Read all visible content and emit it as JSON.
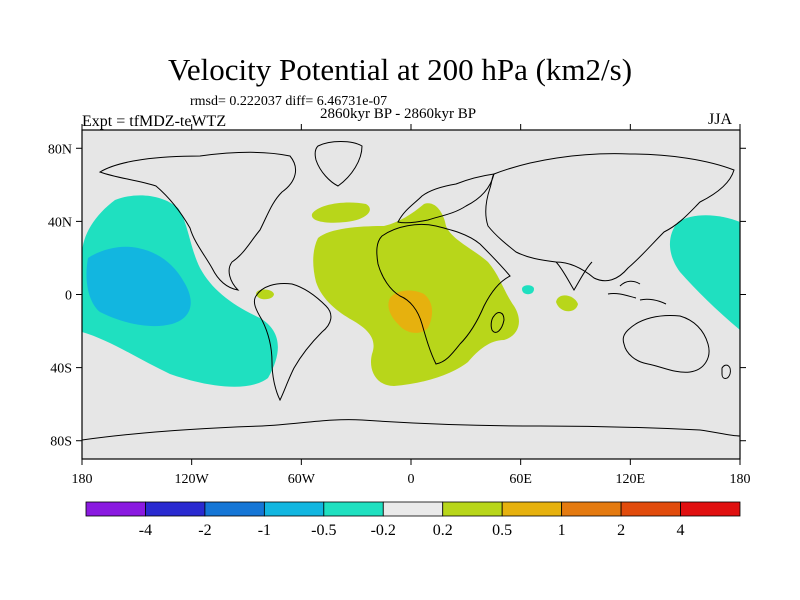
{
  "plot": {
    "title": "Velocity Potential at 200 hPa (km2/s)",
    "stats": "rmsd= 0.222037 diff= 6.46731e-07",
    "experiment": "Expt = tfMDZ-teWTZ",
    "period": "2860kyr BP - 2860kyr BP",
    "season": "JJA"
  },
  "axes": {
    "lat_ticks": [
      {
        "value": 80,
        "label": "80N"
      },
      {
        "value": 40,
        "label": "40N"
      },
      {
        "value": 0,
        "label": "0"
      },
      {
        "value": -40,
        "label": "40S"
      },
      {
        "value": -80,
        "label": "80S"
      }
    ],
    "lon_ticks": [
      {
        "value": -180,
        "label": "180"
      },
      {
        "value": -120,
        "label": "120W"
      },
      {
        "value": -60,
        "label": "60W"
      },
      {
        "value": 0,
        "label": "0"
      },
      {
        "value": 60,
        "label": "60E"
      },
      {
        "value": 120,
        "label": "120E"
      },
      {
        "value": 180,
        "label": "180"
      }
    ]
  },
  "colorbar": {
    "colors": [
      "#8a1ae0",
      "#2a2ad0",
      "#1576d6",
      "#12b6e0",
      "#1fe0c0",
      "#eaeaea",
      "#b8d61a",
      "#e6b10e",
      "#e47a10",
      "#e14b0c",
      "#e01010"
    ],
    "labels": [
      "-4",
      "-2",
      "-1",
      "-0.5",
      "-0.2",
      "0.2",
      "0.5",
      "1",
      "2",
      "4"
    ]
  },
  "regions": [
    {
      "name": "central-pacific-negative",
      "level": "-0.5 to -0.2",
      "color": "#1fe0c0"
    },
    {
      "name": "central-pacific-core",
      "level": "-1 to -0.5",
      "color": "#12b6e0"
    },
    {
      "name": "western-pacific-negative",
      "level": "-0.5 to -0.2",
      "color": "#1fe0c0"
    },
    {
      "name": "indian-ocean-negative-spot",
      "level": "-0.5 to -0.2",
      "color": "#1fe0c0"
    },
    {
      "name": "atlantic-africa-positive",
      "level": "0.2 to 0.5",
      "color": "#b8d61a"
    },
    {
      "name": "central-africa-core",
      "level": "0.5 to 1",
      "color": "#e6b10e"
    }
  ]
}
